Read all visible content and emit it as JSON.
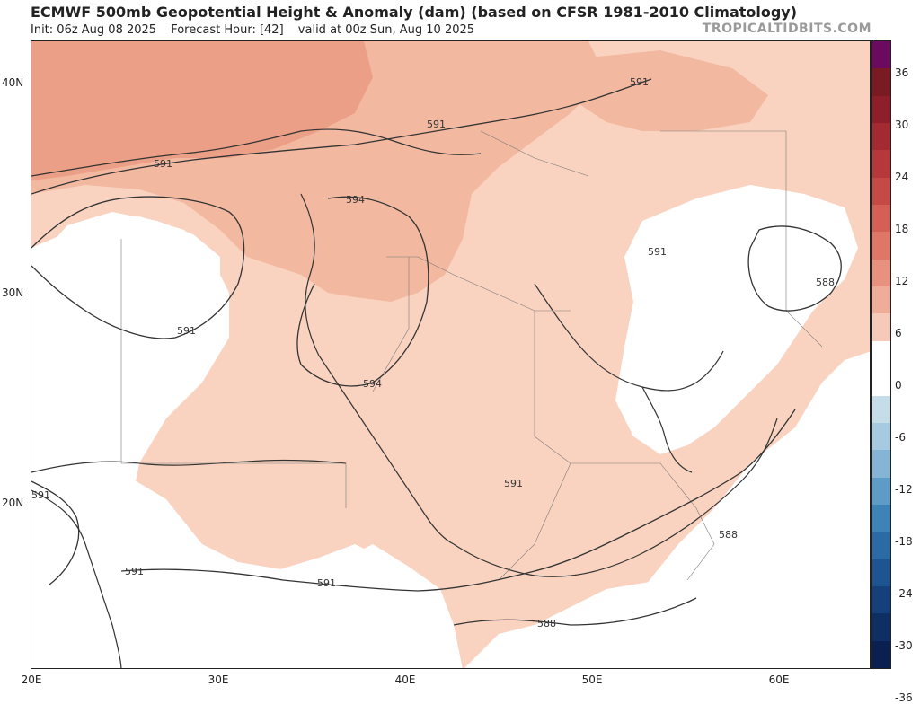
{
  "header": {
    "title": "ECMWF 500mb Geopotential Height & Anomaly (dam) (based on CFSR 1981-2010 Climatology)",
    "init": "Init: 06z Aug 08 2025",
    "forecast_hour": "Forecast Hour: [42]",
    "valid": "valid at 00z Sun, Aug 10 2025",
    "source": "TROPICALTIDBITS.COM"
  },
  "axes": {
    "lat_labels": [
      "40N",
      "30N",
      "20N"
    ],
    "lon_labels": [
      "20E",
      "30E",
      "40E",
      "50E",
      "60E"
    ]
  },
  "contour_labels": [
    "591",
    "591",
    "594",
    "591",
    "591",
    "591",
    "591",
    "594",
    "591",
    "591",
    "588",
    "588",
    "591",
    "591",
    "588"
  ],
  "colorbar": {
    "labels": [
      "36",
      "30",
      "24",
      "18",
      "12",
      "6",
      "0",
      "-6",
      "-12",
      "-18",
      "-24",
      "-30",
      "-36"
    ],
    "colors": [
      "#6b0a5e",
      "#7a1a23",
      "#8d1e2a",
      "#a32a31",
      "#b7383a",
      "#c54a45",
      "#d35f55",
      "#df7766",
      "#e8917e",
      "#efad99",
      "#f6cab9",
      "#ffffff",
      "#ffffff",
      "#c5dde9",
      "#a6cbe0",
      "#84b5d4",
      "#5d9cc6",
      "#3e83b8",
      "#2a6ba6",
      "#1c5592",
      "#14417b",
      "#0e2f63",
      "#0a2050"
    ]
  },
  "fill_colors": {
    "anom_6": "#f9d3c0",
    "anom_9": "#f2b8a0",
    "anom_12": "#eb9f86",
    "land_line": "#555555",
    "contour": "#333333"
  }
}
